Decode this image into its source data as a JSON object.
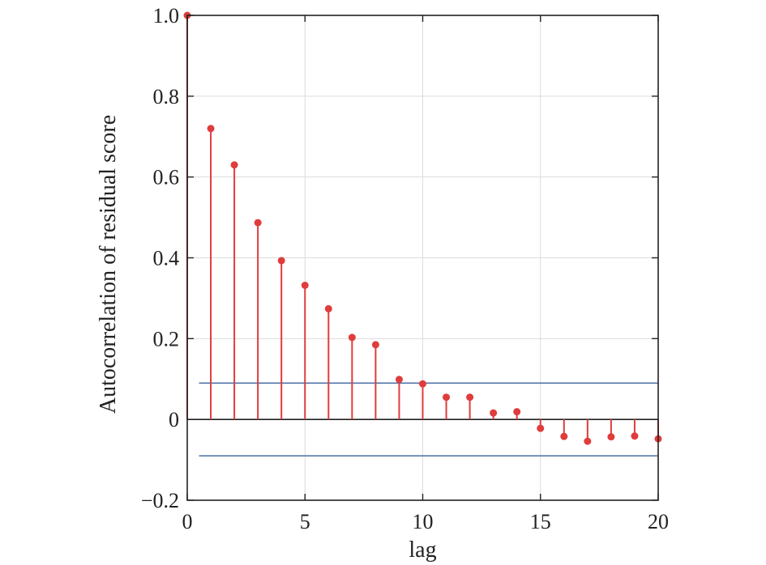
{
  "chart_data": {
    "type": "stem",
    "xlabel": "lag",
    "ylabel": "Autocorrelation of residual score",
    "xlim": [
      0,
      20
    ],
    "ylim": [
      -0.2,
      1.0
    ],
    "xticks": [
      0,
      5,
      10,
      15,
      20
    ],
    "xtick_labels": [
      "0",
      "5",
      "10",
      "15",
      "20"
    ],
    "yticks": [
      -0.2,
      0,
      0.2,
      0.4,
      0.6,
      0.8,
      1.0
    ],
    "ytick_labels": [
      "−0.2",
      "0",
      "0.2",
      "0.4",
      "0.6",
      "0.8",
      "1.0"
    ],
    "grid": true,
    "series": [
      {
        "x": [
          0,
          1,
          2,
          3,
          4,
          5,
          6,
          7,
          8,
          9,
          10,
          11,
          12,
          13,
          14,
          15,
          16,
          17,
          18,
          19,
          20
        ],
        "values": [
          1.0,
          0.72,
          0.63,
          0.487,
          0.393,
          0.332,
          0.274,
          0.203,
          0.185,
          0.099,
          0.088,
          0.055,
          0.055,
          0.016,
          0.019,
          -0.022,
          -0.042,
          -0.054,
          -0.043,
          -0.041,
          -0.048
        ],
        "color": "#e03c3c"
      }
    ],
    "confidence_bounds": {
      "upper": 0.09,
      "lower": -0.09,
      "color": "#4a6fa5"
    }
  }
}
